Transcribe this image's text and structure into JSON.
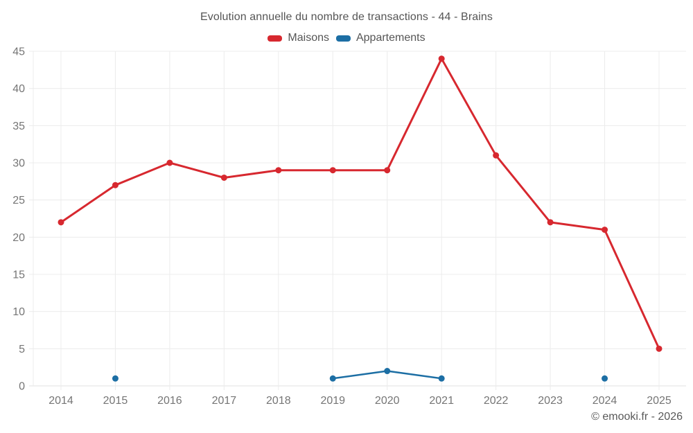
{
  "page": {
    "title": "Evolution annuelle du nombre de transactions - 44 - Brains",
    "footer": "© emooki.fr - 2026"
  },
  "legend": {
    "items": [
      {
        "label": "Maisons",
        "color": "#d7282f"
      },
      {
        "label": "Appartements",
        "color": "#1c6ea4"
      }
    ]
  },
  "chart_data": {
    "type": "line",
    "title": "Evolution annuelle du nombre de transactions - 44 - Brains",
    "categories": [
      "2014",
      "2015",
      "2016",
      "2017",
      "2018",
      "2019",
      "2020",
      "2021",
      "2022",
      "2023",
      "2024",
      "2025"
    ],
    "series": [
      {
        "name": "Maisons",
        "color": "#d7282f",
        "values": [
          22,
          27,
          30,
          28,
          29,
          29,
          29,
          44,
          31,
          22,
          21,
          5
        ]
      },
      {
        "name": "Appartements",
        "color": "#1c6ea4",
        "values": [
          null,
          1,
          null,
          null,
          null,
          1,
          2,
          1,
          null,
          null,
          1,
          null
        ]
      }
    ],
    "xlabel": "",
    "ylabel": "",
    "ylim": [
      0,
      45
    ],
    "ytick_step": 5,
    "grid": true,
    "legend_position": "top-center",
    "annotation": "© emooki.fr - 2026"
  },
  "theme": {
    "grid_color": "#ececec",
    "axis_color": "#e0e0e0",
    "tick_text_color": "#757575",
    "title_text_color": "#555555"
  }
}
